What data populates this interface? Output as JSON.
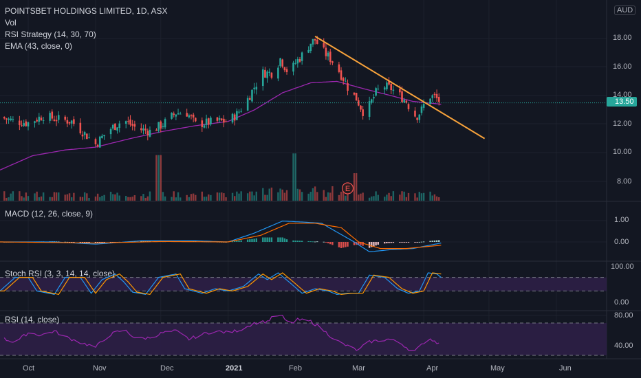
{
  "header": {
    "title": "POINTSBET HOLDINGS LIMITED, 1D, ASX",
    "currency": "AUD",
    "studies": [
      "Vol",
      "RSI Strategy (14, 30, 70)",
      "EMA (43, close, 0)"
    ]
  },
  "last_price": {
    "label": "13.50",
    "value": 13.5
  },
  "earnings_marker": "E",
  "x_labels": [
    {
      "text": "Oct",
      "day": 18
    },
    {
      "text": "Nov",
      "day": 49
    },
    {
      "text": "Dec",
      "day": 79
    },
    {
      "text": "2021",
      "day": 110
    },
    {
      "text": "Feb",
      "day": 141
    },
    {
      "text": "Mar",
      "day": 169
    },
    {
      "text": "Apr",
      "day": 200
    },
    {
      "text": "May",
      "day": 230
    },
    {
      "text": "Jun",
      "day": 261
    }
  ],
  "colors": {
    "up": "#26a69a",
    "down": "#ef5350",
    "ema": "#9c27b0",
    "trendline": "#f7a23b",
    "macd": "#2196f3",
    "signal": "#ff6d00",
    "stoch_k": "#2196f3",
    "stoch_d": "#ff9800",
    "rsi": "#9c27b0",
    "band": "#2a1a3e"
  },
  "chart_data": [
    {
      "type": "candlestick",
      "name": "price",
      "y_ticks": [
        "18.00",
        "16.00",
        "14.00",
        "12.00",
        "10.00",
        "8.00"
      ],
      "ylim": [
        6.6,
        19.6
      ],
      "x_day_range": [
        5,
        271
      ],
      "anchor_closes": [
        [
          5,
          12.5
        ],
        [
          12,
          12.2
        ],
        [
          18,
          12.1
        ],
        [
          25,
          12.6
        ],
        [
          30,
          12.4
        ],
        [
          38,
          12.2
        ],
        [
          45,
          11.2
        ],
        [
          49,
          10.6
        ],
        [
          55,
          11.6
        ],
        [
          62,
          12.3
        ],
        [
          68,
          11.7
        ],
        [
          74,
          11.5
        ],
        [
          80,
          12.0
        ],
        [
          86,
          12.8
        ],
        [
          91,
          12.8
        ],
        [
          95,
          12.0
        ],
        [
          100,
          12.1
        ],
        [
          105,
          12.2
        ],
        [
          110,
          12.2
        ],
        [
          114,
          12.7
        ],
        [
          118,
          13.5
        ],
        [
          122,
          14.6
        ],
        [
          126,
          15.6
        ],
        [
          131,
          15.6
        ],
        [
          134,
          16.6
        ],
        [
          138,
          15.5
        ],
        [
          141,
          16.3
        ],
        [
          145,
          17.0
        ],
        [
          148,
          17.7
        ],
        [
          150,
          17.9
        ],
        [
          153,
          17.2
        ],
        [
          157,
          16.6
        ],
        [
          160,
          16.0
        ],
        [
          163,
          15.2
        ],
        [
          166,
          14.3
        ],
        [
          169,
          13.8
        ],
        [
          172,
          12.9
        ],
        [
          175,
          13.3
        ],
        [
          178,
          14.2
        ],
        [
          181,
          14.7
        ],
        [
          185,
          14.5
        ],
        [
          189,
          14.0
        ],
        [
          192,
          13.6
        ],
        [
          195,
          12.7
        ],
        [
          197,
          12.6
        ],
        [
          199,
          13.0
        ],
        [
          202,
          14.0
        ],
        [
          205,
          13.9
        ],
        [
          208,
          13.5
        ]
      ],
      "ema_anchor": [
        [
          5,
          8.8
        ],
        [
          20,
          9.8
        ],
        [
          35,
          10.2
        ],
        [
          49,
          10.4
        ],
        [
          65,
          11.0
        ],
        [
          80,
          11.5
        ],
        [
          95,
          11.9
        ],
        [
          110,
          12.2
        ],
        [
          122,
          13.0
        ],
        [
          135,
          14.2
        ],
        [
          148,
          14.9
        ],
        [
          160,
          15.0
        ],
        [
          172,
          14.5
        ],
        [
          185,
          14.0
        ],
        [
          195,
          13.6
        ],
        [
          208,
          13.4
        ]
      ],
      "trendline": {
        "from": [
          150,
          18.15
        ],
        "to": [
          228,
          11.0
        ]
      },
      "volume_spikes": [
        [
          78,
          8.3
        ],
        [
          140,
          8.6
        ],
        [
          168,
          5.0
        ]
      ],
      "earnings_day": 165
    },
    {
      "type": "macd",
      "name": "MACD (12, 26, close, 9)",
      "title": "MACD (12, 26, close, 9)",
      "y_ticks": [
        "1.00",
        "0.00"
      ],
      "ylim": [
        -0.55,
        1.35
      ],
      "macd_anchor": [
        [
          5,
          0.0
        ],
        [
          30,
          0.0
        ],
        [
          49,
          -0.1
        ],
        [
          70,
          0.05
        ],
        [
          95,
          0.05
        ],
        [
          110,
          0.0
        ],
        [
          122,
          0.4
        ],
        [
          135,
          0.95
        ],
        [
          145,
          0.9
        ],
        [
          153,
          0.85
        ],
        [
          160,
          0.45
        ],
        [
          168,
          0.0
        ],
        [
          175,
          -0.45
        ],
        [
          185,
          -0.35
        ],
        [
          195,
          -0.3
        ],
        [
          208,
          -0.05
        ]
      ],
      "signal_anchor": [
        [
          5,
          0.0
        ],
        [
          49,
          -0.05
        ],
        [
          80,
          0.02
        ],
        [
          110,
          0.0
        ],
        [
          125,
          0.3
        ],
        [
          138,
          0.85
        ],
        [
          150,
          0.85
        ],
        [
          162,
          0.65
        ],
        [
          170,
          0.0
        ],
        [
          180,
          -0.3
        ],
        [
          192,
          -0.3
        ],
        [
          208,
          -0.15
        ]
      ]
    },
    {
      "type": "line",
      "name": "Stoch RSI (3, 3, 14, 14, close)",
      "title": "Stoch RSI (3, 3, 14, 14, close)",
      "y_ticks": [
        "100.00",
        "0.00"
      ],
      "ylim": [
        -20,
        110
      ],
      "k_anchor": [
        [
          5,
          20
        ],
        [
          12,
          80
        ],
        [
          18,
          80
        ],
        [
          22,
          20
        ],
        [
          30,
          5
        ],
        [
          35,
          80
        ],
        [
          42,
          80
        ],
        [
          47,
          10
        ],
        [
          52,
          70
        ],
        [
          58,
          95
        ],
        [
          62,
          60
        ],
        [
          66,
          15
        ],
        [
          72,
          5
        ],
        [
          78,
          80
        ],
        [
          86,
          95
        ],
        [
          90,
          30
        ],
        [
          98,
          10
        ],
        [
          104,
          30
        ],
        [
          110,
          20
        ],
        [
          117,
          40
        ],
        [
          124,
          95
        ],
        [
          128,
          70
        ],
        [
          133,
          100
        ],
        [
          138,
          60
        ],
        [
          144,
          10
        ],
        [
          150,
          30
        ],
        [
          156,
          20
        ],
        [
          160,
          5
        ],
        [
          165,
          10
        ],
        [
          170,
          10
        ],
        [
          175,
          90
        ],
        [
          182,
          80
        ],
        [
          188,
          30
        ],
        [
          193,
          10
        ],
        [
          198,
          20
        ],
        [
          202,
          100
        ],
        [
          206,
          95
        ],
        [
          208,
          80
        ]
      ]
    },
    {
      "type": "line",
      "name": "RSI (14, close)",
      "title": "RSI (14, close)",
      "y_ticks": [
        "80.00",
        "40.00"
      ],
      "ylim": [
        25,
        85
      ],
      "bands": [
        30,
        70
      ],
      "rsi_anchor": [
        [
          5,
          52
        ],
        [
          12,
          46
        ],
        [
          18,
          58
        ],
        [
          24,
          55
        ],
        [
          30,
          60
        ],
        [
          36,
          52
        ],
        [
          42,
          46
        ],
        [
          49,
          40
        ],
        [
          55,
          55
        ],
        [
          62,
          62
        ],
        [
          68,
          50
        ],
        [
          74,
          52
        ],
        [
          80,
          58
        ],
        [
          86,
          60
        ],
        [
          92,
          50
        ],
        [
          98,
          56
        ],
        [
          104,
          60
        ],
        [
          110,
          58
        ],
        [
          116,
          62
        ],
        [
          122,
          70
        ],
        [
          128,
          72
        ],
        [
          132,
          80
        ],
        [
          135,
          78
        ],
        [
          138,
          68
        ],
        [
          142,
          74
        ],
        [
          148,
          72
        ],
        [
          152,
          65
        ],
        [
          158,
          52
        ],
        [
          162,
          45
        ],
        [
          166,
          40
        ],
        [
          170,
          36
        ],
        [
          174,
          46
        ],
        [
          178,
          48
        ],
        [
          184,
          50
        ],
        [
          190,
          44
        ],
        [
          195,
          34
        ],
        [
          198,
          40
        ],
        [
          202,
          52
        ],
        [
          206,
          46
        ],
        [
          208,
          48
        ]
      ]
    }
  ]
}
